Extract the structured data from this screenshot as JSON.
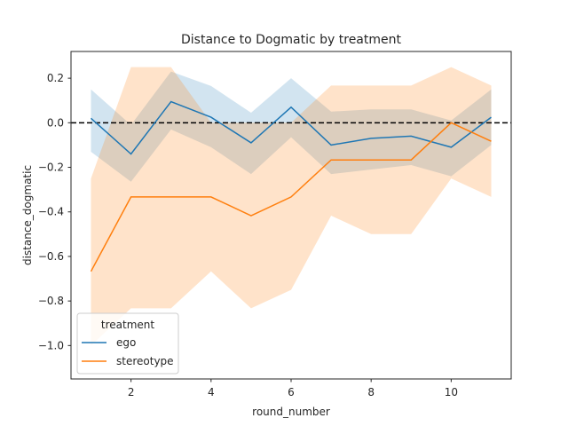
{
  "chart_data": {
    "type": "line",
    "title": "Distance to Dogmatic by treatment",
    "xlabel": "round_number",
    "ylabel": "distance_dogmatic",
    "xlim": [
      0.5,
      11.5
    ],
    "ylim": [
      -1.15,
      0.32
    ],
    "xticks": [
      2,
      4,
      6,
      8,
      10
    ],
    "yticks": [
      0.2,
      0.0,
      -0.2,
      -0.4,
      -0.6,
      -0.8,
      -1.0
    ],
    "ytick_labels": [
      "0.2",
      "0.0",
      "−0.2",
      "−0.4",
      "−0.6",
      "−0.8",
      "−1.0"
    ],
    "grid": false,
    "reference_line": {
      "y": 0,
      "style": "dashed",
      "color": "#000000"
    },
    "legend": {
      "title": "treatment",
      "placement": "lower-left"
    },
    "x": [
      1,
      2,
      3,
      4,
      5,
      6,
      7,
      8,
      9,
      10,
      11
    ],
    "series": [
      {
        "name": "ego",
        "color": "#1f77b4",
        "values": [
          0.02,
          -0.14,
          0.095,
          0.025,
          -0.09,
          0.07,
          -0.1,
          -0.07,
          -0.06,
          -0.11,
          0.025
        ],
        "ci_upper": [
          0.15,
          -0.01,
          0.23,
          0.165,
          0.045,
          0.2,
          0.05,
          0.06,
          0.06,
          0.01,
          0.15
        ],
        "ci_lower": [
          -0.13,
          -0.265,
          -0.03,
          -0.11,
          -0.23,
          -0.065,
          -0.23,
          -0.21,
          -0.19,
          -0.24,
          -0.1
        ]
      },
      {
        "name": "stereotype",
        "color": "#ff7f0e",
        "values": [
          -0.667,
          -0.333,
          -0.333,
          -0.333,
          -0.417,
          -0.333,
          -0.167,
          -0.167,
          -0.167,
          0.0,
          -0.083
        ],
        "ci_upper": [
          -0.25,
          0.25,
          0.25,
          0.0,
          0.0,
          0.0,
          0.167,
          0.167,
          0.167,
          0.25,
          0.167
        ],
        "ci_lower": [
          -1.0,
          -0.833,
          -0.833,
          -0.667,
          -0.833,
          -0.75,
          -0.417,
          -0.5,
          -0.5,
          -0.25,
          -0.333
        ]
      }
    ]
  }
}
